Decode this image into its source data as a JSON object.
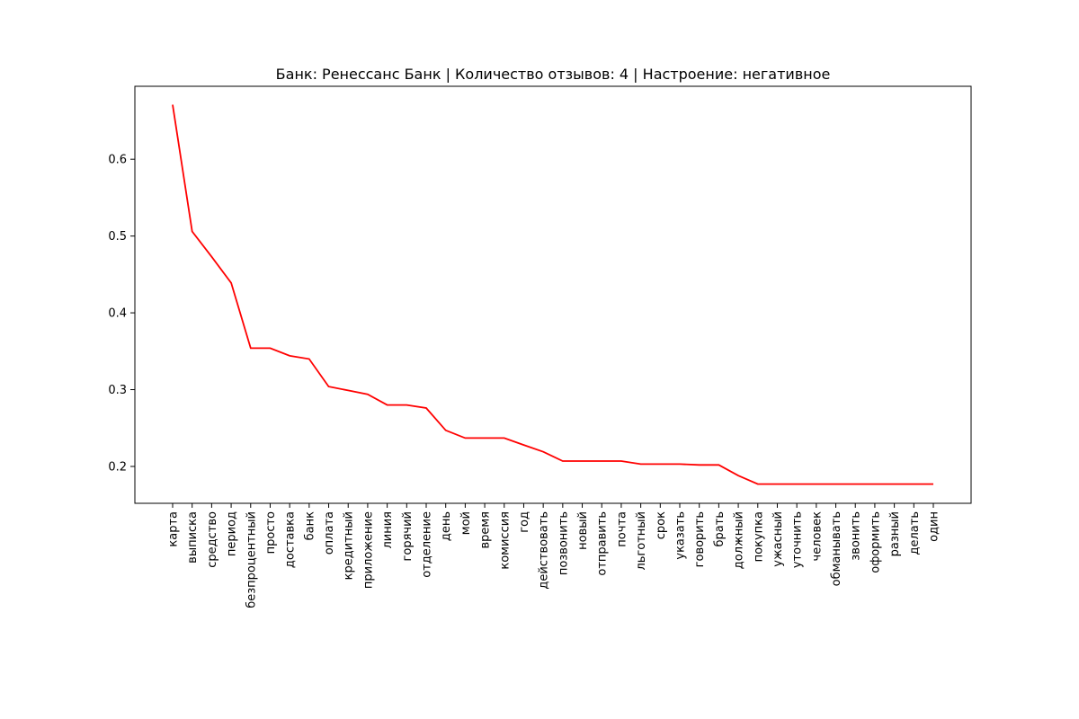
{
  "chart_data": {
    "type": "line",
    "title": "Банк: Ренессанс Банк | Количество отзывов: 4 | Настроение: негативное",
    "xlabel": "",
    "ylabel": "",
    "ylim": [
      0.152,
      0.695
    ],
    "yticks": [
      "0.2",
      "0.3",
      "0.4",
      "0.5",
      "0.6"
    ],
    "ytick_values": [
      0.2,
      0.3,
      0.4,
      0.5,
      0.6
    ],
    "grid": false,
    "line_color": "#ff0000",
    "categories": [
      "карта",
      "выписка",
      "средство",
      "период",
      "безпроцентный",
      "просто",
      "доставка",
      "банк",
      "оплата",
      "кредитный",
      "приложение",
      "линия",
      "горячий",
      "отделение",
      "день",
      "мой",
      "время",
      "комиссия",
      "год",
      "действовать",
      "позвонить",
      "новый",
      "отправить",
      "почта",
      "льготный",
      "срок",
      "указать",
      "говорить",
      "брать",
      "должный",
      "покупка",
      "ужасный",
      "уточнить",
      "человек",
      "обманывать",
      "звонить",
      "оформить",
      "разный",
      "делать",
      "один"
    ],
    "values": [
      0.671,
      0.506,
      0.473,
      0.439,
      0.354,
      0.354,
      0.344,
      0.34,
      0.304,
      0.299,
      0.294,
      0.28,
      0.28,
      0.276,
      0.247,
      0.237,
      0.237,
      0.237,
      0.228,
      0.219,
      0.207,
      0.207,
      0.207,
      0.207,
      0.203,
      0.203,
      0.203,
      0.202,
      0.202,
      0.188,
      0.177,
      0.177,
      0.177,
      0.177,
      0.177,
      0.177,
      0.177,
      0.177,
      0.177,
      0.177
    ]
  }
}
